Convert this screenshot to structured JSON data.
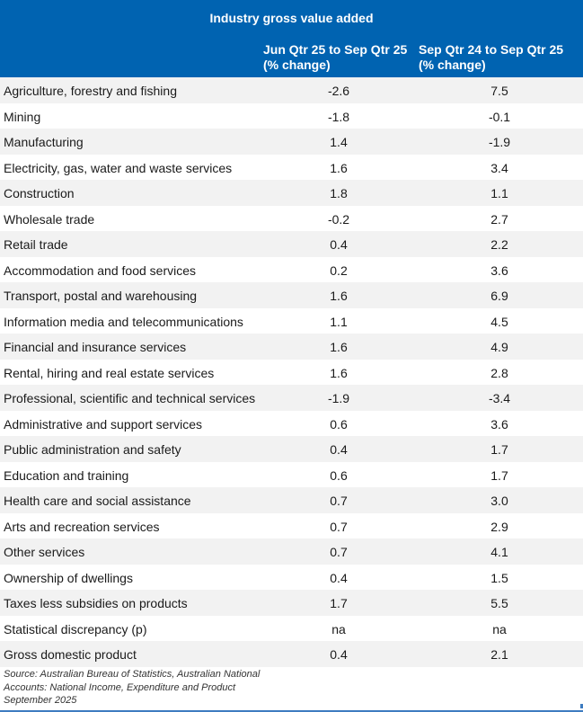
{
  "table": {
    "title": "Industry gross value added",
    "columns": [
      {
        "line1": "Jun Qtr 25 to Sep Qtr 25",
        "line2": "(% change)"
      },
      {
        "line1": "Sep Qtr 24 to Sep Qtr 25",
        "line2": "(% change)"
      }
    ],
    "rows": [
      {
        "label": "Agriculture, forestry and fishing",
        "q": "-2.6",
        "y": "7.5"
      },
      {
        "label": "Mining",
        "q": "-1.8",
        "y": "-0.1"
      },
      {
        "label": "Manufacturing",
        "q": "1.4",
        "y": "-1.9"
      },
      {
        "label": "Electricity, gas, water and waste services",
        "q": "1.6",
        "y": "3.4"
      },
      {
        "label": "Construction",
        "q": "1.8",
        "y": "1.1"
      },
      {
        "label": "Wholesale trade",
        "q": "-0.2",
        "y": "2.7"
      },
      {
        "label": "Retail trade",
        "q": "0.4",
        "y": "2.2"
      },
      {
        "label": "Accommodation and food services",
        "q": "0.2",
        "y": "3.6"
      },
      {
        "label": "Transport, postal and warehousing",
        "q": "1.6",
        "y": "6.9"
      },
      {
        "label": "Information media and telecommunications",
        "q": "1.1",
        "y": "4.5"
      },
      {
        "label": "Financial and insurance services",
        "q": "1.6",
        "y": "4.9"
      },
      {
        "label": "Rental, hiring and real estate services",
        "q": "1.6",
        "y": "2.8"
      },
      {
        "label": "Professional, scientific and technical services",
        "q": "-1.9",
        "y": "-3.4"
      },
      {
        "label": "Administrative and support services",
        "q": "0.6",
        "y": "3.6"
      },
      {
        "label": "Public administration and safety",
        "q": "0.4",
        "y": "1.7"
      },
      {
        "label": "Education and training",
        "q": "0.6",
        "y": "1.7"
      },
      {
        "label": "Health care and social assistance",
        "q": "0.7",
        "y": "3.0"
      },
      {
        "label": "Arts and recreation services",
        "q": "0.7",
        "y": "2.9"
      },
      {
        "label": "Other services",
        "q": "0.7",
        "y": "4.1"
      },
      {
        "label": "Ownership of dwellings",
        "q": "0.4",
        "y": "1.5"
      },
      {
        "label": "Taxes less subsidies on products",
        "q": "1.7",
        "y": "5.5"
      },
      {
        "label": "Statistical discrepancy (p)",
        "q": "na",
        "y": "na"
      },
      {
        "label": "Gross domestic product",
        "q": "0.4",
        "y": "2.1"
      }
    ],
    "source": "Source:  Australian Bureau of Statistics, Australian National Accounts: National Income, Expenditure and Product September 2025"
  },
  "colors": {
    "header_bg": "#0063b1",
    "row_alt_bg": "#f2f2f2",
    "border": "#3e7cc0"
  }
}
